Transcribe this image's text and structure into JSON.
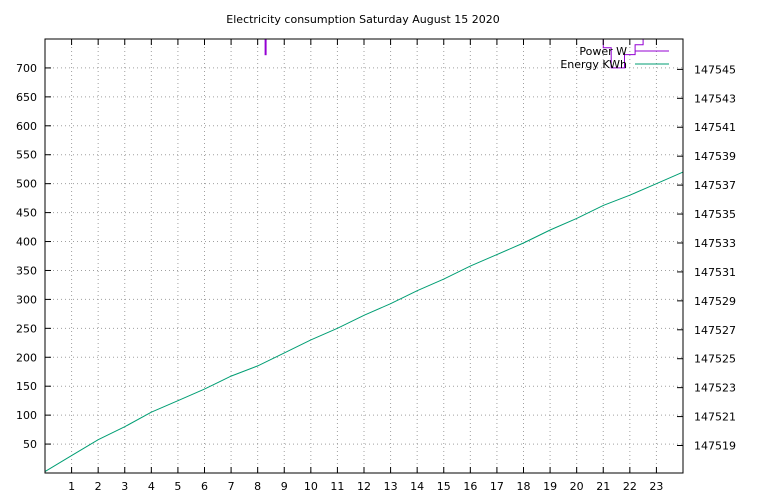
{
  "chart_data": {
    "type": "line",
    "title": "Electricity consumption Saturday August 15 2020",
    "xlabel": "",
    "ylabel": "",
    "y2label": "",
    "xlim": [
      0,
      24
    ],
    "ylim": [
      0,
      750
    ],
    "y2lim": [
      147517.1,
      147547.1
    ],
    "x_ticks": [
      "1",
      "2",
      "3",
      "4",
      "5",
      "6",
      "7",
      "8",
      "9",
      "10",
      "11",
      "12",
      "13",
      "14",
      "15",
      "16",
      "17",
      "18",
      "19",
      "20",
      "21",
      "22",
      "23"
    ],
    "y_ticks": [
      "50",
      "100",
      "150",
      "200",
      "250",
      "300",
      "350",
      "400",
      "450",
      "500",
      "550",
      "600",
      "650",
      "700"
    ],
    "y2_ticks": [
      "147519",
      "147521",
      "147523",
      "147525",
      "147527",
      "147529",
      "147531",
      "147533",
      "147535",
      "147537",
      "147539",
      "147541",
      "147543",
      "147545"
    ],
    "grid": true,
    "legend_position": "top-right",
    "series": [
      {
        "name": "Power W",
        "axis": "left",
        "color": "#9400d3",
        "points": [
          [
            8.3,
            750
          ],
          [
            8.3,
            722
          ],
          [
            21.0,
            750
          ],
          [
            21.0,
            735
          ],
          [
            21.3,
            735
          ],
          [
            21.3,
            700
          ],
          [
            21.8,
            700
          ],
          [
            21.8,
            723
          ],
          [
            22.2,
            723
          ],
          [
            22.2,
            740
          ],
          [
            22.5,
            740
          ],
          [
            22.5,
            750
          ]
        ]
      },
      {
        "name": "Energy KWh",
        "axis": "right",
        "color": "#009e73",
        "x": [
          0,
          1,
          2,
          3,
          4,
          5,
          6,
          7,
          8,
          9,
          10,
          11,
          12,
          13,
          14,
          15,
          16,
          17,
          18,
          19,
          20,
          21,
          22,
          23,
          24
        ],
        "values": [
          147517.2,
          147518.3,
          147519.4,
          147520.3,
          147521.3,
          147522.1,
          147522.9,
          147523.8,
          147524.5,
          147525.4,
          147526.3,
          147527.1,
          147528.0,
          147528.8,
          147529.7,
          147530.5,
          147531.4,
          147532.2,
          147533.0,
          147533.9,
          147534.7,
          147535.6,
          147536.3,
          147537.1,
          147537.9
        ]
      }
    ]
  }
}
